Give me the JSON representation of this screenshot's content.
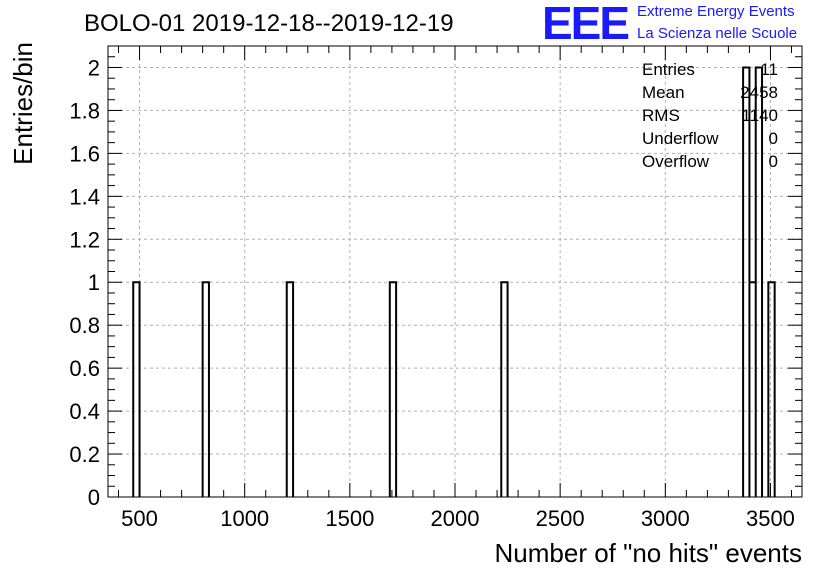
{
  "title": "BOLO-01 2019-12-18--2019-12-19",
  "logo": {
    "letters": "EEE",
    "line1": "Extreme Energy Events",
    "line2": "La Scienza nelle Scuole",
    "color": "#1a1aff"
  },
  "stats": [
    {
      "label": "Entries",
      "value": "11"
    },
    {
      "label": "Mean",
      "value": "2458"
    },
    {
      "label": "RMS",
      "value": "1140"
    },
    {
      "label": "Underflow",
      "value": "0"
    },
    {
      "label": "Overflow",
      "value": "0"
    }
  ],
  "chart_data": {
    "type": "bar",
    "title": "BOLO-01 2019-12-18--2019-12-19",
    "xlabel": "Number of \"no hits\" events",
    "ylabel": "Entries/bin",
    "xlim": [
      350,
      3650
    ],
    "ylim": [
      0,
      2.1
    ],
    "bin_width": 30,
    "bins": [
      {
        "x0": 470,
        "x1": 500,
        "value": 1
      },
      {
        "x0": 800,
        "x1": 830,
        "value": 1
      },
      {
        "x0": 1200,
        "x1": 1230,
        "value": 1
      },
      {
        "x0": 1690,
        "x1": 1720,
        "value": 1
      },
      {
        "x0": 2220,
        "x1": 2250,
        "value": 1
      },
      {
        "x0": 3370,
        "x1": 3400,
        "value": 2
      },
      {
        "x0": 3400,
        "x1": 3430,
        "value": 1
      },
      {
        "x0": 3430,
        "x1": 3460,
        "value": 2
      },
      {
        "x0": 3490,
        "x1": 3520,
        "value": 1
      }
    ],
    "x_ticks": [
      500,
      1000,
      1500,
      2000,
      2500,
      3000,
      3500
    ],
    "x_tick_labels": [
      "500",
      "1000",
      "1500",
      "2000",
      "2500",
      "3000",
      "3500"
    ],
    "y_ticks": [
      0,
      0.2,
      0.4,
      0.6,
      0.8,
      1,
      1.2,
      1.4,
      1.6,
      1.8,
      2
    ],
    "y_tick_labels": [
      "0",
      "0.2",
      "0.4",
      "0.6",
      "0.8",
      "1",
      "1.2",
      "1.4",
      "1.6",
      "1.8",
      "2"
    ],
    "grid": true,
    "line_color": "#000000",
    "grid_color": "#b0b0b0"
  }
}
